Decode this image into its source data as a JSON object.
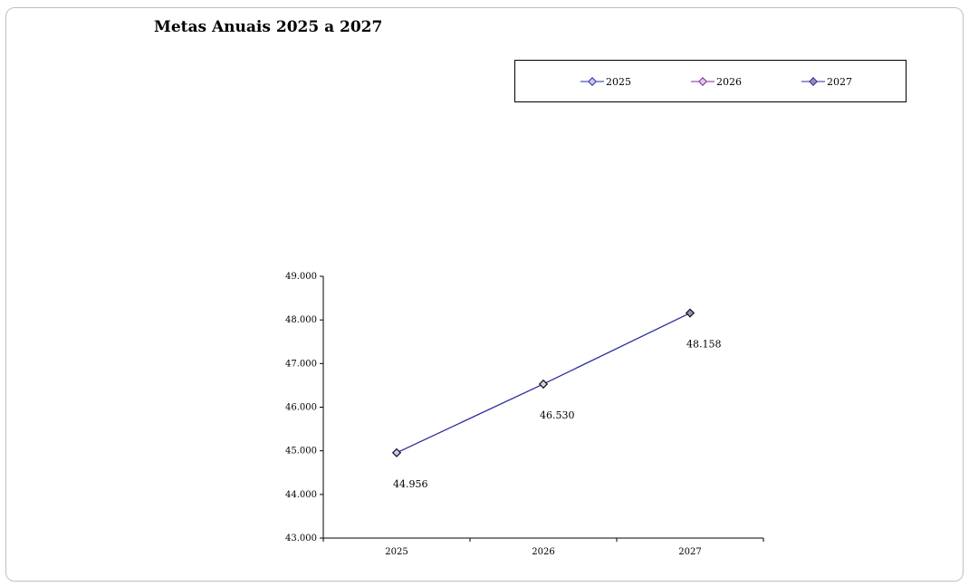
{
  "chart_data": {
    "type": "line",
    "title": "Metas Anuais 2025 a 2027",
    "categories": [
      "2025",
      "2026",
      "2027"
    ],
    "series": [
      {
        "values": [
          44956,
          46530,
          48158
        ],
        "color": "#2b2b9e"
      }
    ],
    "data_labels": [
      "44.956",
      "46.530",
      "48.158"
    ],
    "ylim": [
      43000,
      49000
    ],
    "yticks": [
      43000,
      44000,
      45000,
      46000,
      47000,
      48000,
      49000
    ],
    "ytick_labels": [
      "43.000",
      "44.000",
      "45.000",
      "46.000",
      "47.000",
      "48.000",
      "49.000"
    ],
    "legend": {
      "position": "top-right",
      "entries": [
        {
          "label": "2025",
          "color": "#2b2b9e"
        },
        {
          "label": "2026",
          "color": "#7a2b8e"
        },
        {
          "label": "2027",
          "color": "#2b2b9e"
        }
      ]
    },
    "grid": false
  }
}
